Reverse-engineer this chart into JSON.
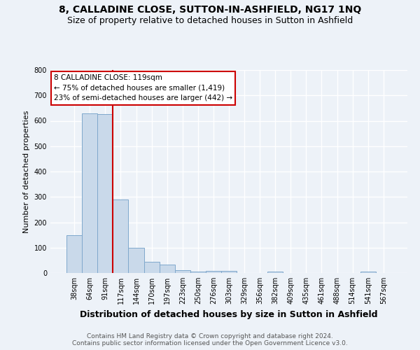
{
  "title": "8, CALLADINE CLOSE, SUTTON-IN-ASHFIELD, NG17 1NQ",
  "subtitle": "Size of property relative to detached houses in Sutton in Ashfield",
  "xlabel": "Distribution of detached houses by size in Sutton in Ashfield",
  "ylabel": "Number of detached properties",
  "bar_labels": [
    "38sqm",
    "64sqm",
    "91sqm",
    "117sqm",
    "144sqm",
    "170sqm",
    "197sqm",
    "223sqm",
    "250sqm",
    "276sqm",
    "303sqm",
    "329sqm",
    "356sqm",
    "382sqm",
    "409sqm",
    "435sqm",
    "461sqm",
    "488sqm",
    "514sqm",
    "541sqm",
    "567sqm"
  ],
  "bar_values": [
    148,
    630,
    625,
    290,
    100,
    45,
    32,
    10,
    5,
    8,
    8,
    0,
    0,
    5,
    0,
    0,
    0,
    0,
    0,
    5,
    0
  ],
  "bar_color": "#c9d9ea",
  "bar_edgecolor": "#7fa8cc",
  "vline_index": 3,
  "vline_color": "#cc0000",
  "ylim": [
    0,
    800
  ],
  "yticks": [
    0,
    100,
    200,
    300,
    400,
    500,
    600,
    700,
    800
  ],
  "annotation_title": "8 CALLADINE CLOSE: 119sqm",
  "annotation_line1": "← 75% of detached houses are smaller (1,419)",
  "annotation_line2": "23% of semi-detached houses are larger (442) →",
  "annotation_box_color": "#ffffff",
  "annotation_box_edgecolor": "#cc0000",
  "footer_line1": "Contains HM Land Registry data © Crown copyright and database right 2024.",
  "footer_line2": "Contains public sector information licensed under the Open Government Licence v3.0.",
  "background_color": "#edf2f8",
  "grid_color": "#ffffff",
  "title_fontsize": 10,
  "subtitle_fontsize": 9,
  "ylabel_fontsize": 8,
  "xlabel_fontsize": 9,
  "tick_fontsize": 7,
  "ann_fontsize": 7.5,
  "footer_fontsize": 6.5
}
